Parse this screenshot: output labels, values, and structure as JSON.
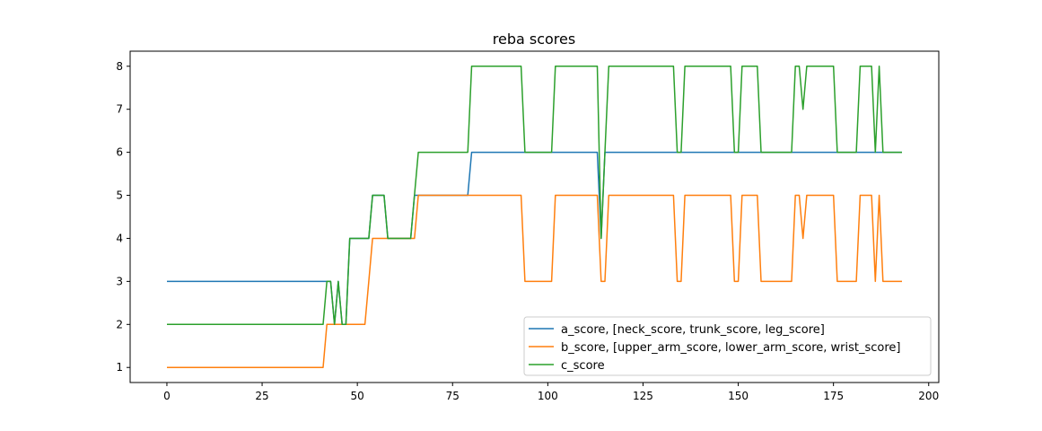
{
  "chart_data": {
    "type": "line",
    "title": "reba scores",
    "xlabel": "",
    "ylabel": "",
    "xlim": [
      -9.65,
      202.65
    ],
    "ylim": [
      0.65,
      8.35
    ],
    "xticks": [
      0,
      25,
      50,
      75,
      100,
      125,
      150,
      175,
      200
    ],
    "yticks": [
      1,
      2,
      3,
      4,
      5,
      6,
      7,
      8
    ],
    "grid": false,
    "legend_position": "lower-right",
    "series": [
      {
        "name": "a_score, [neck_score, trunk_score, leg_score]",
        "color": "#1f77b4",
        "x": [
          0,
          43,
          44,
          45,
          46,
          47,
          48,
          53,
          54,
          57,
          58,
          64,
          65,
          79,
          80,
          113,
          114,
          115,
          193
        ],
        "y": [
          3,
          3,
          2,
          3,
          2,
          2,
          4,
          4,
          5,
          5,
          4,
          4,
          5,
          5,
          6,
          6,
          4,
          6,
          6
        ]
      },
      {
        "name": "b_score, [upper_arm_score, lower_arm_score, wrist_score]",
        "color": "#ff7f0e",
        "x": [
          0,
          41,
          42,
          52,
          53,
          54,
          65,
          66,
          93,
          94,
          101,
          102,
          113,
          114,
          115,
          116,
          133,
          134,
          135,
          136,
          148,
          149,
          150,
          151,
          155,
          156,
          164,
          165,
          166,
          167,
          168,
          175,
          176,
          181,
          182,
          185,
          186,
          187,
          188,
          193
        ],
        "y": [
          1,
          1,
          2,
          2,
          3,
          4,
          4,
          5,
          5,
          3,
          3,
          5,
          5,
          3,
          3,
          5,
          5,
          3,
          3,
          5,
          5,
          3,
          3,
          5,
          5,
          3,
          3,
          5,
          5,
          4,
          5,
          5,
          3,
          3,
          5,
          5,
          3,
          5,
          3,
          3
        ]
      },
      {
        "name": "c_score",
        "color": "#2ca02c",
        "x": [
          0,
          41,
          42,
          43,
          44,
          45,
          46,
          47,
          48,
          53,
          54,
          57,
          58,
          64,
          65,
          66,
          79,
          80,
          93,
          94,
          101,
          102,
          113,
          114,
          115,
          116,
          133,
          134,
          135,
          136,
          148,
          149,
          150,
          151,
          155,
          156,
          164,
          165,
          166,
          167,
          168,
          175,
          176,
          181,
          182,
          185,
          186,
          187,
          188,
          193
        ],
        "y": [
          2,
          2,
          3,
          3,
          2,
          3,
          2,
          2,
          4,
          4,
          5,
          5,
          4,
          4,
          5,
          6,
          6,
          8,
          8,
          6,
          6,
          8,
          8,
          4,
          6,
          8,
          8,
          6,
          6,
          8,
          8,
          6,
          6,
          8,
          8,
          6,
          6,
          8,
          8,
          7,
          8,
          8,
          6,
          6,
          8,
          8,
          6,
          8,
          6,
          6
        ]
      }
    ]
  }
}
